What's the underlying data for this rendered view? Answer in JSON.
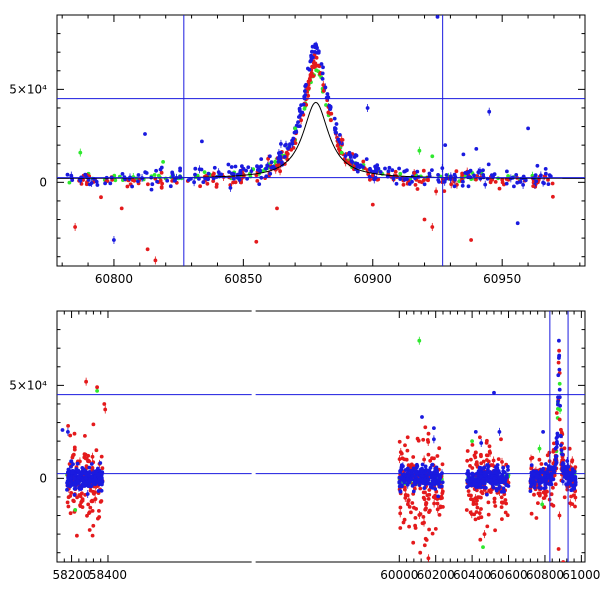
{
  "chart_data": [
    {
      "id": "top",
      "type": "scatter",
      "title": "",
      "xlabel": "",
      "ylabel": "",
      "xlim": [
        60778,
        60982
      ],
      "ylim": [
        -45000,
        90000
      ],
      "x_ticks": [
        60800,
        60850,
        60900,
        60950
      ],
      "x_tick_labels": [
        "60800",
        "60850",
        "60900",
        "60950"
      ],
      "y_ticks": [
        0,
        50000
      ],
      "y_tick_labels": [
        "0",
        "5×10⁴"
      ],
      "reference_lines": {
        "horizontal": [
          2500,
          45000
        ],
        "vertical": [
          60827,
          60927
        ]
      },
      "model_curve": {
        "peak_x": 60878,
        "peak_y": 43000,
        "baseline": 2000,
        "width": 6
      },
      "series": [
        {
          "name": "blue",
          "color": "#1a1adf"
        },
        {
          "name": "red",
          "color": "#e41a1c"
        },
        {
          "name": "green",
          "color": "#2ee82e"
        }
      ],
      "outliers": {
        "blue": [
          [
            60800,
            -31000
          ],
          [
            60812,
            26000
          ],
          [
            60834,
            22000
          ],
          [
            60898,
            40000
          ],
          [
            60925,
            89000
          ],
          [
            60935,
            15000
          ],
          [
            60945,
            38000
          ],
          [
            60960,
            29000
          ],
          [
            60956,
            -22000
          ],
          [
            60845,
            -3000
          ],
          [
            60940,
            18000
          ],
          [
            60928,
            20000
          ]
        ],
        "red": [
          [
            60785,
            -24000
          ],
          [
            60803,
            -14000
          ],
          [
            60813,
            -36000
          ],
          [
            60816,
            -42000
          ],
          [
            60855,
            -32000
          ],
          [
            60863,
            -14000
          ],
          [
            60888,
            23000
          ],
          [
            60900,
            -12000
          ],
          [
            60920,
            -20000
          ],
          [
            60923,
            -24000
          ],
          [
            60938,
            -31000
          ],
          [
            60795,
            -8000
          ],
          [
            60916,
            5000
          ],
          [
            60962,
            -2000
          ]
        ],
        "green": [
          [
            60787,
            16000
          ],
          [
            60819,
            11000
          ],
          [
            60888,
            16000
          ],
          [
            60918,
            17000
          ],
          [
            60923,
            14000
          ],
          [
            60870,
            29000
          ]
        ]
      }
    },
    {
      "id": "bottom",
      "type": "scatter",
      "title": "",
      "xlabel": "",
      "ylabel": "",
      "xlim": [
        58120,
        61020
      ],
      "ylim": [
        -45000,
        90000
      ],
      "x_ticks": [
        58200,
        58400,
        60000,
        60200,
        60400,
        60600,
        60800,
        61000
      ],
      "x_tick_labels": [
        "58200",
        "58400",
        "60000",
        "60200",
        "60400",
        "60600",
        "60800",
        "61000"
      ],
      "x_axis_break": [
        58420,
        59980
      ],
      "y_ticks": [
        0,
        50000
      ],
      "y_tick_labels": [
        "0",
        "5×10⁴"
      ],
      "reference_lines": {
        "horizontal": [
          2500,
          45000
        ],
        "vertical": [
          60827,
          60927
        ]
      },
      "data_clusters": [
        {
          "x_range": [
            58175,
            58370
          ],
          "blue_spread": 9000,
          "red_spread": 30000
        },
        {
          "x_range": [
            60000,
            60240
          ],
          "blue_spread": 9000,
          "red_spread": 35000
        },
        {
          "x_range": [
            60370,
            60600
          ],
          "blue_spread": 9000,
          "red_spread": 30000
        },
        {
          "x_range": [
            60720,
            60970
          ],
          "blue_spread": 8000,
          "red_spread": 20000
        }
      ],
      "outliers": {
        "blue": [
          [
            58180,
            25000
          ],
          [
            60125,
            33000
          ],
          [
            60190,
            27000
          ],
          [
            60190,
            21000
          ],
          [
            60420,
            25000
          ],
          [
            60520,
            46000
          ],
          [
            60550,
            25000
          ],
          [
            60790,
            25000
          ],
          [
            58150,
            26000
          ],
          [
            60450,
            19000
          ]
        ],
        "red": [
          [
            58280,
            52000
          ],
          [
            58340,
            49000
          ],
          [
            58380,
            40000
          ],
          [
            58385,
            37000
          ],
          [
            58320,
            29000
          ],
          [
            60115,
            -40000
          ],
          [
            60160,
            -43000
          ],
          [
            60140,
            -36000
          ],
          [
            60445,
            -33000
          ],
          [
            60468,
            -30000
          ],
          [
            60875,
            -38000
          ],
          [
            60900,
            -45000
          ],
          [
            60880,
            -20000
          ]
        ],
        "green": [
          [
            60110,
            74000
          ],
          [
            60400,
            20000
          ],
          [
            58340,
            47000
          ],
          [
            60770,
            16000
          ],
          [
            60460,
            -37000
          ],
          [
            58220,
            -17000
          ],
          [
            60785,
            -14000
          ]
        ]
      }
    }
  ]
}
